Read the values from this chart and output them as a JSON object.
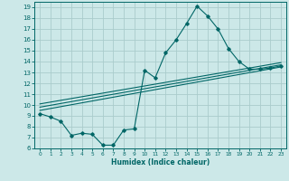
{
  "xlabel": "Humidex (Indice chaleur)",
  "ylabel": "",
  "xlim": [
    -0.5,
    23.5
  ],
  "ylim": [
    6,
    19.5
  ],
  "yticks": [
    6,
    7,
    8,
    9,
    10,
    11,
    12,
    13,
    14,
    15,
    16,
    17,
    18,
    19
  ],
  "xticks": [
    0,
    1,
    2,
    3,
    4,
    5,
    6,
    7,
    8,
    9,
    10,
    11,
    12,
    13,
    14,
    15,
    16,
    17,
    18,
    19,
    20,
    21,
    22,
    23
  ],
  "bg_color": "#cce8e8",
  "grid_color": "#aacccc",
  "line_color": "#006666",
  "line1_x": [
    0,
    1,
    2,
    3,
    4,
    5,
    6,
    7,
    8,
    9,
    10,
    11,
    12,
    13,
    14,
    15,
    16,
    17,
    18,
    19,
    20,
    21,
    22,
    23
  ],
  "line1_y": [
    9.2,
    8.9,
    8.5,
    7.2,
    7.4,
    7.3,
    6.3,
    6.3,
    7.7,
    7.8,
    13.2,
    12.5,
    14.8,
    16.0,
    17.5,
    19.1,
    18.2,
    17.0,
    15.2,
    14.0,
    13.3,
    13.3,
    13.4,
    13.6
  ],
  "line2_x": [
    0,
    23
  ],
  "line2_y": [
    9.5,
    13.5
  ],
  "line3_x": [
    0,
    23
  ],
  "line3_y": [
    9.8,
    13.7
  ],
  "line4_x": [
    0,
    23
  ],
  "line4_y": [
    10.1,
    13.9
  ]
}
